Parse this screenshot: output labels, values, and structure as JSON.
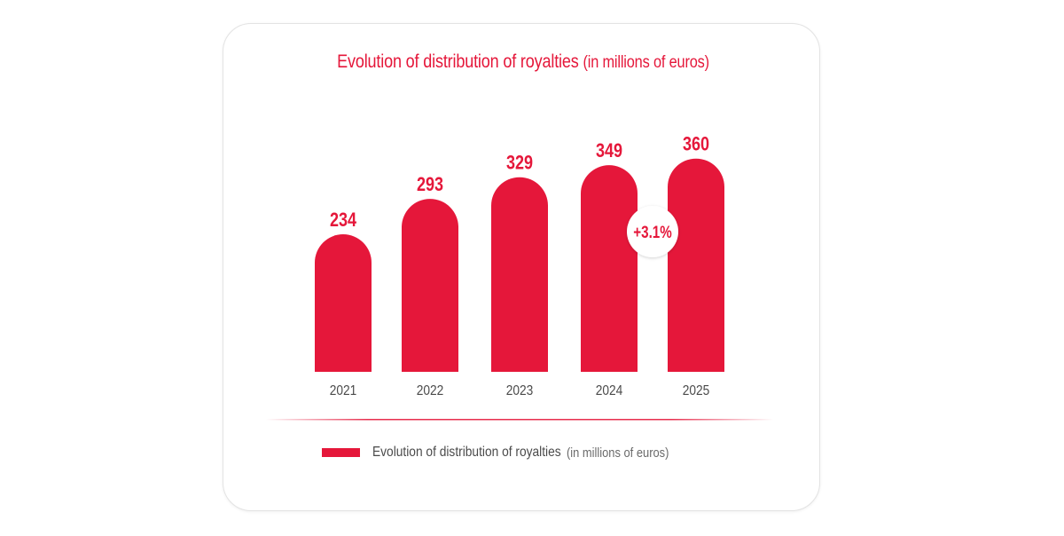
{
  "chart_data": {
    "type": "bar",
    "title": "Evolution of distribution of royalties",
    "title_unit": "(in millions of euros)",
    "categories": [
      "2021",
      "2022",
      "2023",
      "2024",
      "2025"
    ],
    "series": [
      {
        "name": "Evolution of distribution of royalties",
        "values": [
          234,
          293,
          329,
          349,
          360
        ]
      }
    ],
    "value_labels": [
      "234",
      "293",
      "329",
      "349",
      "360"
    ],
    "annotation": "+3.1%",
    "legend": {
      "label": "Evolution of distribution of royalties",
      "unit": "(in millions of euros)",
      "placement": "bottom"
    },
    "grid": false,
    "colors": {
      "bar": "#e5173a",
      "tick_label": "#4a4a4a",
      "divider": "#e5173a"
    }
  }
}
